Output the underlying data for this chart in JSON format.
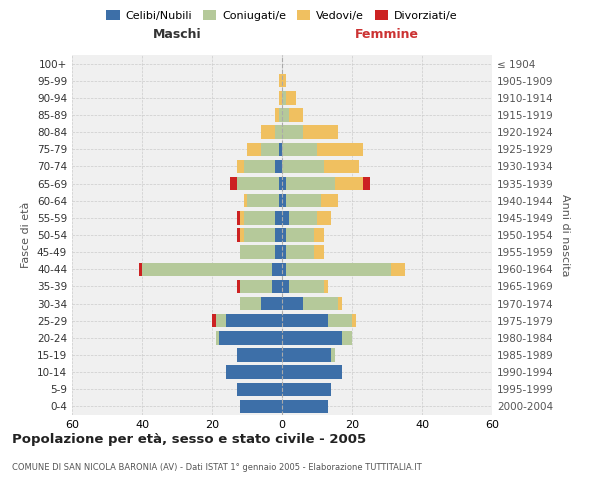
{
  "age_groups": [
    "0-4",
    "5-9",
    "10-14",
    "15-19",
    "20-24",
    "25-29",
    "30-34",
    "35-39",
    "40-44",
    "45-49",
    "50-54",
    "55-59",
    "60-64",
    "65-69",
    "70-74",
    "75-79",
    "80-84",
    "85-89",
    "90-94",
    "95-99",
    "100+"
  ],
  "birth_years": [
    "2000-2004",
    "1995-1999",
    "1990-1994",
    "1985-1989",
    "1980-1984",
    "1975-1979",
    "1970-1974",
    "1965-1969",
    "1960-1964",
    "1955-1959",
    "1950-1954",
    "1945-1949",
    "1940-1944",
    "1935-1939",
    "1930-1934",
    "1925-1929",
    "1920-1924",
    "1915-1919",
    "1910-1914",
    "1905-1909",
    "≤ 1904"
  ],
  "colors": {
    "celibe": "#3d6fa8",
    "coniugato": "#b5c99a",
    "vedovo": "#f0c060",
    "divorziato": "#cc2222"
  },
  "maschi": {
    "celibe": [
      12,
      13,
      16,
      13,
      18,
      16,
      6,
      3,
      3,
      2,
      2,
      2,
      1,
      1,
      2,
      1,
      0,
      0,
      0,
      0,
      0
    ],
    "coniugato": [
      0,
      0,
      0,
      0,
      1,
      3,
      6,
      9,
      37,
      10,
      9,
      9,
      9,
      12,
      9,
      5,
      2,
      1,
      0,
      0,
      0
    ],
    "vedovo": [
      0,
      0,
      0,
      0,
      0,
      0,
      0,
      0,
      0,
      0,
      1,
      1,
      1,
      0,
      2,
      4,
      4,
      1,
      1,
      1,
      0
    ],
    "divorziato": [
      0,
      0,
      0,
      0,
      0,
      1,
      0,
      1,
      1,
      0,
      1,
      1,
      0,
      2,
      0,
      0,
      0,
      0,
      0,
      0,
      0
    ]
  },
  "femmine": {
    "nubile": [
      13,
      14,
      17,
      14,
      17,
      13,
      6,
      2,
      1,
      1,
      1,
      2,
      1,
      1,
      0,
      0,
      0,
      0,
      0,
      0,
      0
    ],
    "coniugata": [
      0,
      0,
      0,
      1,
      3,
      7,
      10,
      10,
      30,
      8,
      8,
      8,
      10,
      14,
      12,
      10,
      6,
      2,
      1,
      0,
      0
    ],
    "vedova": [
      0,
      0,
      0,
      0,
      0,
      1,
      1,
      1,
      4,
      3,
      3,
      4,
      5,
      8,
      10,
      13,
      10,
      4,
      3,
      1,
      0
    ],
    "divorziata": [
      0,
      0,
      0,
      0,
      0,
      0,
      0,
      0,
      0,
      0,
      0,
      0,
      0,
      2,
      0,
      0,
      0,
      0,
      0,
      0,
      0
    ]
  },
  "xlim": 60,
  "title": "Popolazione per età, sesso e stato civile - 2005",
  "subtitle": "COMUNE DI SAN NICOLA BARONIA (AV) - Dati ISTAT 1° gennaio 2005 - Elaborazione TUTTITALIA.IT",
  "ylabel_left": "Fasce di età",
  "ylabel_right": "Anni di nascita",
  "xlabel_left": "Maschi",
  "xlabel_right": "Femmine",
  "bg_color": "#f0f0f0",
  "maschi_label_color": "#333333",
  "femmine_label_color": "#cc3333"
}
